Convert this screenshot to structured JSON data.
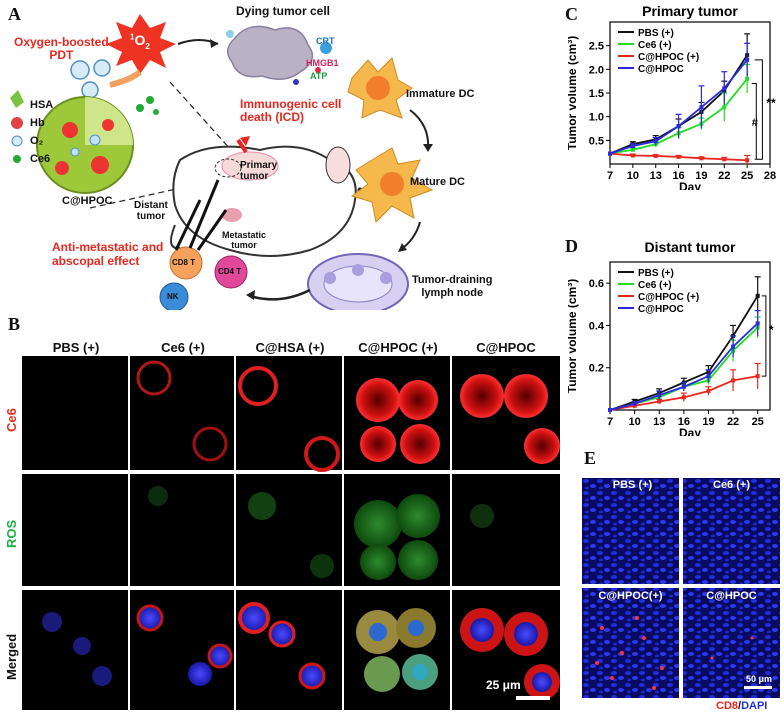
{
  "panels": {
    "A": "A",
    "B": "B",
    "C": "C",
    "D": "D",
    "E": "E"
  },
  "schematic": {
    "dying_cell": "Dying tumor cell",
    "singlet_oxygen_base": "1",
    "singlet_oxygen_sub": "O",
    "singlet_oxygen_2": "2",
    "oxygen_boosted_pdt": [
      "Oxygen-boosted",
      "PDT"
    ],
    "crt": "CRT",
    "hmgb1": "HMGB1",
    "atp": "ATP",
    "immature_dc": "Immature DC",
    "icd": [
      "Immunogenic cell",
      "death (ICD)"
    ],
    "mature_dc": "Mature DC",
    "legend": [
      "HSA",
      "Hb",
      "O₂",
      "Ce6"
    ],
    "nanoparticle": "C@HPOC",
    "primary_tumor": [
      "Primary",
      "tumor"
    ],
    "distant_tumor": [
      "Distant",
      "tumor"
    ],
    "metastatic_tumor": [
      "Metastatic",
      "tumor"
    ],
    "anti_metastatic": [
      "Anti-metastatic and",
      "abscopal effect"
    ],
    "lymph_node": [
      "Tumor-draining",
      "lymph node"
    ],
    "cd8": "CD8 T",
    "cd4": "CD4 T",
    "nk": "NK",
    "o2_bubble": "O₂",
    "colors": {
      "red_text": "#e8281e",
      "green_text": "#18b24a"
    }
  },
  "panel_b": {
    "columns": [
      "PBS (+)",
      "Ce6 (+)",
      "C@HSA (+)",
      "C@HPOC (+)",
      "C@HPOC"
    ],
    "rows": [
      "Ce6",
      "ROS",
      "Merged"
    ],
    "scale_bar": "25 μm"
  },
  "panel_e": {
    "labels": [
      "PBS (+)",
      "Ce6 (+)",
      "C@HPOC(+)",
      "C@HPOC"
    ],
    "scale_bar": "50 μm",
    "stain_cd8": "CD8",
    "stain_sep": "/",
    "stain_dapi": "DAPI"
  },
  "chart_data": [
    {
      "type": "line",
      "title": "Primary tumor",
      "xlabel": "Day",
      "ylabel": "Tumor volume (cm³)",
      "xlim": [
        7,
        28
      ],
      "ylim": [
        0,
        3.0
      ],
      "xticks": [
        7,
        10,
        13,
        16,
        19,
        22,
        25,
        28
      ],
      "yticks": [
        0.5,
        1.0,
        1.5,
        2.0,
        2.5
      ],
      "ytick_labels": [
        "0.5",
        "1.0",
        "1.5",
        "2.0",
        "2.5"
      ],
      "x": [
        7,
        10,
        13,
        16,
        19,
        22,
        25
      ],
      "series": [
        {
          "name": "PBS (+)",
          "color": "#111111",
          "values": [
            0.22,
            0.42,
            0.52,
            0.8,
            1.1,
            1.55,
            2.3
          ],
          "err": [
            0,
            0.05,
            0.08,
            0.15,
            0.2,
            0.2,
            0.45
          ]
        },
        {
          "name": "Ce6 (+)",
          "color": "#22dd22",
          "values": [
            0.22,
            0.3,
            0.42,
            0.65,
            0.85,
            1.2,
            1.8
          ],
          "err": [
            0,
            0.04,
            0.06,
            0.12,
            0.12,
            0.3,
            0.3
          ]
        },
        {
          "name": "C@HPOC (+)",
          "color": "#e8281e",
          "values": [
            0.22,
            0.18,
            0.17,
            0.15,
            0.12,
            0.1,
            0.08
          ],
          "err": [
            0,
            0.03,
            0.03,
            0.03,
            0.03,
            0.04,
            0.1
          ]
        },
        {
          "name": "C@HPOC",
          "color": "#2a2ae0",
          "values": [
            0.22,
            0.38,
            0.48,
            0.8,
            1.2,
            1.6,
            2.2
          ],
          "err": [
            0,
            0.05,
            0.08,
            0.25,
            0.45,
            0.35,
            0.35
          ]
        }
      ],
      "significance": [
        "**",
        "#"
      ]
    },
    {
      "type": "line",
      "title": "Distant tumor",
      "xlabel": "Day",
      "ylabel": "Tumor volume (cm³)",
      "xlim": [
        7,
        26.5
      ],
      "ylim": [
        0,
        0.7
      ],
      "xticks": [
        7,
        10,
        13,
        16,
        19,
        22,
        25
      ],
      "yticks": [
        0.2,
        0.4,
        0.6
      ],
      "ytick_labels": [
        "0.2",
        "0.4",
        "0.6"
      ],
      "x": [
        7,
        10,
        13,
        16,
        19,
        22,
        25
      ],
      "series": [
        {
          "name": "PBS (+)",
          "color": "#111111",
          "values": [
            0.0,
            0.04,
            0.08,
            0.13,
            0.18,
            0.35,
            0.54
          ],
          "err": [
            0,
            0.01,
            0.02,
            0.02,
            0.03,
            0.05,
            0.09
          ]
        },
        {
          "name": "Ce6 (+)",
          "color": "#22dd22",
          "values": [
            0.0,
            0.03,
            0.06,
            0.11,
            0.14,
            0.28,
            0.39
          ],
          "err": [
            0,
            0.01,
            0.01,
            0.02,
            0.02,
            0.05,
            0.05
          ]
        },
        {
          "name": "C@HPOC (+)",
          "color": "#e8281e",
          "values": [
            0.0,
            0.02,
            0.04,
            0.06,
            0.09,
            0.14,
            0.16
          ],
          "err": [
            0,
            0.01,
            0.01,
            0.02,
            0.02,
            0.05,
            0.06
          ]
        },
        {
          "name": "C@HPOC",
          "color": "#2a2ae0",
          "values": [
            0.0,
            0.03,
            0.07,
            0.11,
            0.16,
            0.3,
            0.41
          ],
          "err": [
            0,
            0.01,
            0.02,
            0.02,
            0.03,
            0.05,
            0.06
          ]
        }
      ],
      "significance": [
        "*"
      ]
    }
  ]
}
